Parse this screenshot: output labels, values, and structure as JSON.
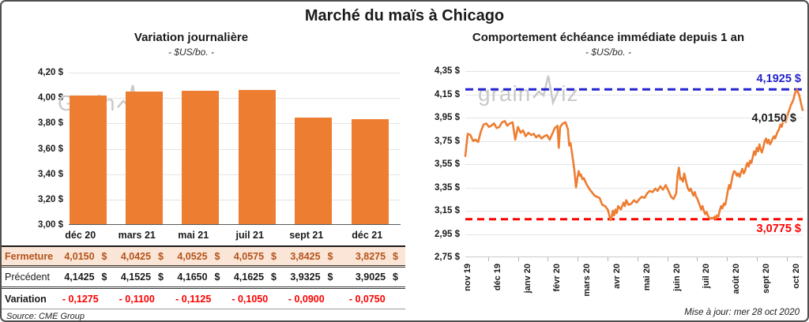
{
  "page_title": "Marché du maïs à Chicago",
  "watermark": {
    "left_prefix": "Grain",
    "right_prefix": "grain",
    "suffix": "iz"
  },
  "footer": {
    "source": "Source: CME Group",
    "updated": "Mise à jour: mer 28 oct 2020"
  },
  "chart_data": [
    {
      "type": "bar",
      "title": "Variation  journalière",
      "subtitle": "- $US/bo. -",
      "categories": [
        "déc 20",
        "mars 21",
        "mai 21",
        "juil 21",
        "sept 21",
        "déc 21"
      ],
      "values": [
        4.015,
        4.0425,
        4.0525,
        4.0575,
        3.8425,
        3.8275
      ],
      "ylim": [
        3.0,
        4.2
      ],
      "ytick_step": 0.2,
      "y_tick_labels": [
        "4,20 $",
        "4,00 $",
        "3,80 $",
        "3,60 $",
        "3,40 $",
        "3,20 $",
        "3,00 $"
      ],
      "bar_color": "#ED7D31",
      "grid": true,
      "legend": "none"
    },
    {
      "type": "line",
      "title": "Comportement  échéance  immédiate  depuis 1 an",
      "subtitle": "- $US/bo. -",
      "x_tick_labels": [
        "nov 19",
        "déc 19",
        "janv 20",
        "févr 20",
        "mars 20",
        "avr 20",
        "mai 20",
        "juin 20",
        "juil 20",
        "août 20",
        "sept 20",
        "oct 20"
      ],
      "ylim": [
        2.75,
        4.35
      ],
      "ytick_step": 0.2,
      "y_tick_labels": [
        "4,35 $",
        "4,15 $",
        "3,95 $",
        "3,75 $",
        "3,55 $",
        "3,35 $",
        "3,15 $",
        "2,95 $",
        "2,75 $"
      ],
      "line_color": "#ED7D31",
      "grid": true,
      "legend": "none",
      "high_line": {
        "value": 4.1925,
        "label": "4,1925 $",
        "color": "#2323CE"
      },
      "low_line": {
        "value": 3.0775,
        "label": "3,0775 $",
        "color": "#FE0000"
      },
      "last_label": {
        "value": 4.015,
        "label": "4,0150 $",
        "color": "#000000"
      },
      "points": [
        [
          0.0,
          3.62
        ],
        [
          0.007,
          3.81
        ],
        [
          0.015,
          3.8
        ],
        [
          0.023,
          3.75
        ],
        [
          0.031,
          3.76
        ],
        [
          0.038,
          3.74
        ],
        [
          0.046,
          3.83
        ],
        [
          0.054,
          3.89
        ],
        [
          0.062,
          3.9
        ],
        [
          0.07,
          3.87
        ],
        [
          0.077,
          3.88
        ],
        [
          0.085,
          3.9
        ],
        [
          0.093,
          3.86
        ],
        [
          0.101,
          3.87
        ],
        [
          0.109,
          3.91
        ],
        [
          0.117,
          3.92
        ],
        [
          0.124,
          3.88
        ],
        [
          0.132,
          3.9
        ],
        [
          0.14,
          3.91
        ],
        [
          0.148,
          3.76
        ],
        [
          0.156,
          3.87
        ],
        [
          0.164,
          3.82
        ],
        [
          0.171,
          3.84
        ],
        [
          0.179,
          3.79
        ],
        [
          0.187,
          3.82
        ],
        [
          0.195,
          3.8
        ],
        [
          0.203,
          3.81
        ],
        [
          0.21,
          3.78
        ],
        [
          0.218,
          3.8
        ],
        [
          0.226,
          3.77
        ],
        [
          0.234,
          3.79
        ],
        [
          0.242,
          3.8
        ],
        [
          0.25,
          3.76
        ],
        [
          0.265,
          3.86
        ],
        [
          0.273,
          3.88
        ],
        [
          0.277,
          3.69
        ],
        [
          0.281,
          3.87
        ],
        [
          0.289,
          3.9
        ],
        [
          0.297,
          3.91
        ],
        [
          0.304,
          3.85
        ],
        [
          0.308,
          3.71
        ],
        [
          0.312,
          3.73
        ],
        [
          0.316,
          3.65
        ],
        [
          0.32,
          3.57
        ],
        [
          0.324,
          3.48
        ],
        [
          0.328,
          3.35
        ],
        [
          0.332,
          3.43
        ],
        [
          0.336,
          3.49
        ],
        [
          0.34,
          3.45
        ],
        [
          0.343,
          3.46
        ],
        [
          0.347,
          3.42
        ],
        [
          0.351,
          3.43
        ],
        [
          0.359,
          3.38
        ],
        [
          0.367,
          3.34
        ],
        [
          0.375,
          3.31
        ],
        [
          0.383,
          3.28
        ],
        [
          0.39,
          3.27
        ],
        [
          0.398,
          3.26
        ],
        [
          0.406,
          3.2
        ],
        [
          0.414,
          3.19
        ],
        [
          0.422,
          3.16
        ],
        [
          0.426,
          3.12
        ],
        [
          0.43,
          3.07
        ],
        [
          0.433,
          3.08
        ],
        [
          0.437,
          3.15
        ],
        [
          0.441,
          3.11
        ],
        [
          0.445,
          3.16
        ],
        [
          0.449,
          3.13
        ],
        [
          0.453,
          3.19
        ],
        [
          0.461,
          3.16
        ],
        [
          0.469,
          3.22
        ],
        [
          0.473,
          3.19
        ],
        [
          0.477,
          3.24
        ],
        [
          0.484,
          3.2
        ],
        [
          0.492,
          3.21
        ],
        [
          0.5,
          3.24
        ],
        [
          0.508,
          3.22
        ],
        [
          0.516,
          3.25
        ],
        [
          0.523,
          3.27
        ],
        [
          0.531,
          3.26
        ],
        [
          0.539,
          3.3
        ],
        [
          0.547,
          3.32
        ],
        [
          0.555,
          3.31
        ],
        [
          0.563,
          3.34
        ],
        [
          0.57,
          3.32
        ],
        [
          0.578,
          3.36
        ],
        [
          0.586,
          3.33
        ],
        [
          0.594,
          3.37
        ],
        [
          0.602,
          3.32
        ],
        [
          0.61,
          3.27
        ],
        [
          0.617,
          3.25
        ],
        [
          0.625,
          3.3
        ],
        [
          0.629,
          3.45
        ],
        [
          0.633,
          3.52
        ],
        [
          0.635,
          3.48
        ],
        [
          0.637,
          3.42
        ],
        [
          0.641,
          3.43
        ],
        [
          0.645,
          3.4
        ],
        [
          0.649,
          3.47
        ],
        [
          0.653,
          3.42
        ],
        [
          0.656,
          3.38
        ],
        [
          0.66,
          3.34
        ],
        [
          0.664,
          3.32
        ],
        [
          0.668,
          3.34
        ],
        [
          0.672,
          3.31
        ],
        [
          0.676,
          3.28
        ],
        [
          0.68,
          3.31
        ],
        [
          0.684,
          3.27
        ],
        [
          0.688,
          3.25
        ],
        [
          0.692,
          3.22
        ],
        [
          0.696,
          3.19
        ],
        [
          0.699,
          3.16
        ],
        [
          0.703,
          3.19
        ],
        [
          0.707,
          3.15
        ],
        [
          0.711,
          3.12
        ],
        [
          0.715,
          3.14
        ],
        [
          0.719,
          3.11
        ],
        [
          0.723,
          3.09
        ],
        [
          0.727,
          3.08
        ],
        [
          0.731,
          3.09
        ],
        [
          0.735,
          3.08
        ],
        [
          0.739,
          3.1
        ],
        [
          0.742,
          3.08
        ],
        [
          0.746,
          3.11
        ],
        [
          0.75,
          3.1
        ],
        [
          0.754,
          3.15
        ],
        [
          0.758,
          3.19
        ],
        [
          0.762,
          3.17
        ],
        [
          0.766,
          3.21
        ],
        [
          0.77,
          3.2
        ],
        [
          0.774,
          3.25
        ],
        [
          0.778,
          3.32
        ],
        [
          0.782,
          3.37
        ],
        [
          0.785,
          3.34
        ],
        [
          0.789,
          3.4
        ],
        [
          0.793,
          3.46
        ],
        [
          0.797,
          3.49
        ],
        [
          0.801,
          3.48
        ],
        [
          0.805,
          3.45
        ],
        [
          0.809,
          3.47
        ],
        [
          0.813,
          3.44
        ],
        [
          0.817,
          3.48
        ],
        [
          0.821,
          3.51
        ],
        [
          0.825,
          3.47
        ],
        [
          0.829,
          3.49
        ],
        [
          0.832,
          3.53
        ],
        [
          0.836,
          3.56
        ],
        [
          0.84,
          3.53
        ],
        [
          0.844,
          3.58
        ],
        [
          0.848,
          3.56
        ],
        [
          0.852,
          3.61
        ],
        [
          0.856,
          3.66
        ],
        [
          0.86,
          3.63
        ],
        [
          0.864,
          3.69
        ],
        [
          0.868,
          3.66
        ],
        [
          0.872,
          3.72
        ],
        [
          0.875,
          3.68
        ],
        [
          0.879,
          3.65
        ],
        [
          0.883,
          3.69
        ],
        [
          0.887,
          3.74
        ],
        [
          0.891,
          3.77
        ],
        [
          0.895,
          3.73
        ],
        [
          0.899,
          3.76
        ],
        [
          0.903,
          3.72
        ],
        [
          0.907,
          3.74
        ],
        [
          0.911,
          3.77
        ],
        [
          0.915,
          3.79
        ],
        [
          0.918,
          3.77
        ],
        [
          0.922,
          3.8
        ],
        [
          0.926,
          3.83
        ],
        [
          0.93,
          3.85
        ],
        [
          0.934,
          3.89
        ],
        [
          0.938,
          3.87
        ],
        [
          0.942,
          3.92
        ],
        [
          0.946,
          3.95
        ],
        [
          0.95,
          3.91
        ],
        [
          0.954,
          3.96
        ],
        [
          0.958,
          4.0
        ],
        [
          0.961,
          4.02
        ],
        [
          0.965,
          4.06
        ],
        [
          0.969,
          4.08
        ],
        [
          0.973,
          4.11
        ],
        [
          0.977,
          4.16
        ],
        [
          0.983,
          4.19
        ],
        [
          0.99,
          4.14
        ],
        [
          0.996,
          4.06
        ],
        [
          1.0,
          4.015
        ]
      ]
    }
  ],
  "table": {
    "col_headers": [
      "déc 20",
      "mars 21",
      "mai 21",
      "juil 21",
      "sept 21",
      "déc 21"
    ],
    "rows": [
      {
        "label": "Fermeture",
        "values": [
          "4,0150",
          "4,0425",
          "4,0525",
          "4,0575",
          "3,8425",
          "3,8275"
        ],
        "currency": "$"
      },
      {
        "label": "Précédent",
        "values": [
          "4,1425",
          "4,1525",
          "4,1650",
          "4,1625",
          "3,9325",
          "3,9025"
        ],
        "currency": "$"
      },
      {
        "label": "Variation",
        "values": [
          "- 0,1275",
          "- 0,1100",
          "- 0,1125",
          "- 0,1050",
          "- 0,0900",
          "- 0,0750"
        ]
      }
    ]
  }
}
